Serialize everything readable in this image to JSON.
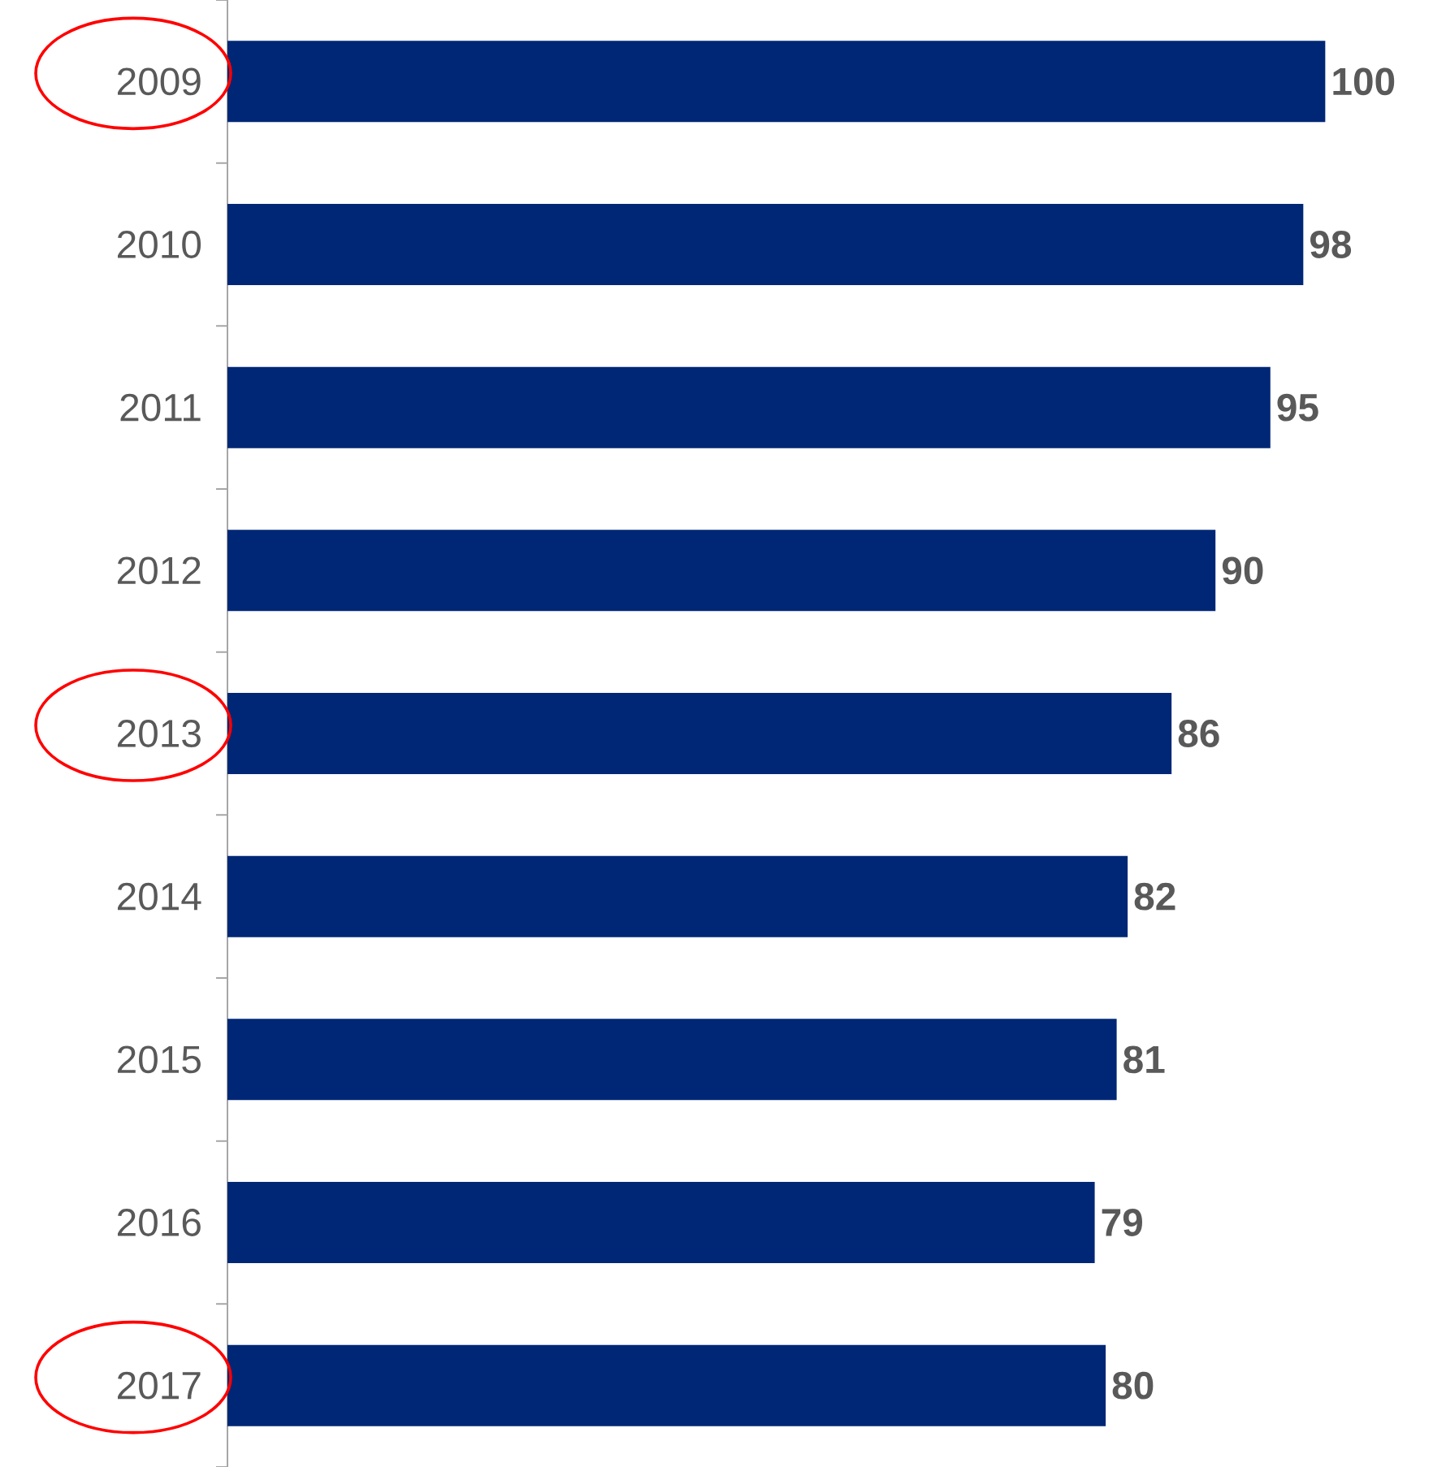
{
  "chart_data": {
    "type": "bar",
    "orientation": "horizontal",
    "categories": [
      "2009",
      "2010",
      "2011",
      "2012",
      "2013",
      "2014",
      "2015",
      "2016",
      "2017"
    ],
    "values": [
      100,
      98,
      95,
      90,
      86,
      82,
      81,
      79,
      80
    ],
    "color": "#002776",
    "data_labels": true
  }
}
